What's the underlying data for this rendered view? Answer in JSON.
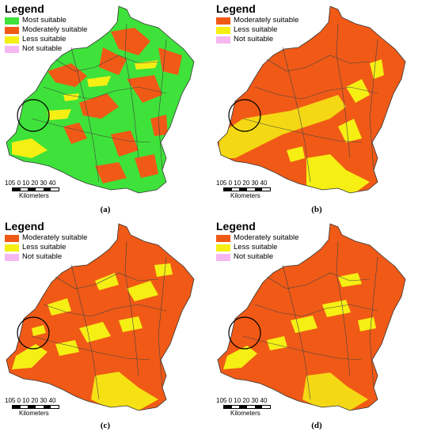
{
  "legend_title": "Legend",
  "colors": {
    "most": "#3ee23a",
    "moderate": "#f05a16",
    "less": "#f5ef14",
    "not": "#f6b7f0"
  },
  "labels": {
    "most": "Most suitable",
    "moderate": "Moderately suitable",
    "less": "Less suitable",
    "not": "Not suitable"
  },
  "scale": {
    "ticks": "105 0   10  20  30  40",
    "unit": "Kilometers"
  },
  "panels": [
    {
      "caption": "(a)"
    },
    {
      "caption": "(b)"
    },
    {
      "caption": "(c)"
    },
    {
      "caption": "(d)"
    }
  ]
}
